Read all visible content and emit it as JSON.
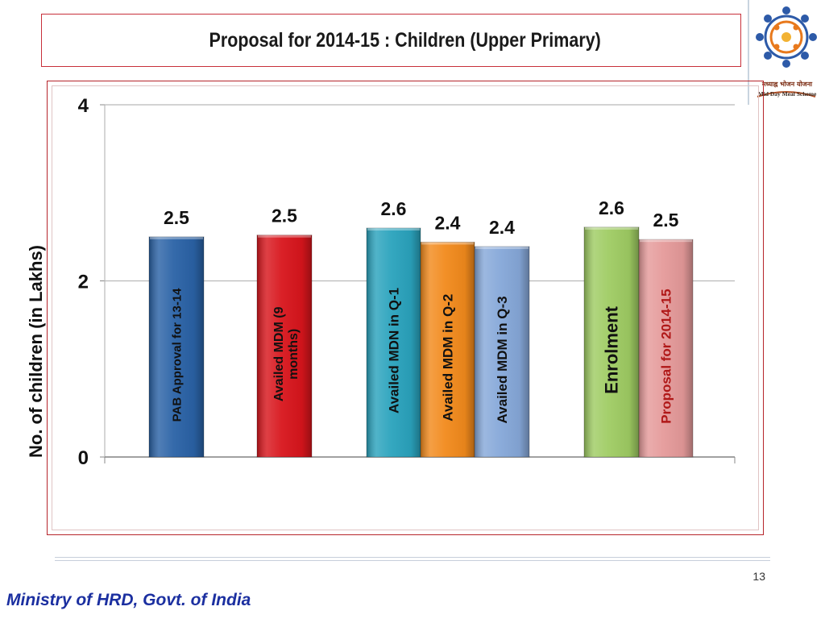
{
  "slide": {
    "title": "Proposal for 2014-15 :  Children (Upper Primary)",
    "page_number": "13",
    "footer": "Ministry of HRD, Govt. of India"
  },
  "logo": {
    "icon": "mid-day-meal-logo",
    "caption_hindi": "मध्याह्न भोजन योजना",
    "caption_english": "Mid Day Meal Scheme"
  },
  "chart_data": {
    "type": "bar",
    "title": "",
    "xlabel": "",
    "ylabel": "No. of children (in Lakhs)",
    "ylim": [
      0,
      4
    ],
    "yticks": [
      "0",
      "2",
      "4"
    ],
    "grid": true,
    "legend": "none",
    "categories": [
      "PAB Approval for 13-14",
      "Availed MDM (9 months)",
      "Availed MDN in Q-1",
      "Availed MDM in Q-2",
      "Availed MDM in Q-3",
      "Enrolment",
      "Proposal for 2014-15"
    ],
    "values": [
      2.5,
      2.52,
      2.6,
      2.44,
      2.39,
      2.61,
      2.47
    ],
    "data_labels": [
      "2.5",
      "2.5",
      "2.6",
      "2.4",
      "2.4",
      "2.6",
      "2.5"
    ],
    "colors": [
      "#2a62a6",
      "#d8151c",
      "#2aa3bd",
      "#f28a1c",
      "#86a8d9",
      "#9fcc63",
      "#e59a9a"
    ]
  }
}
